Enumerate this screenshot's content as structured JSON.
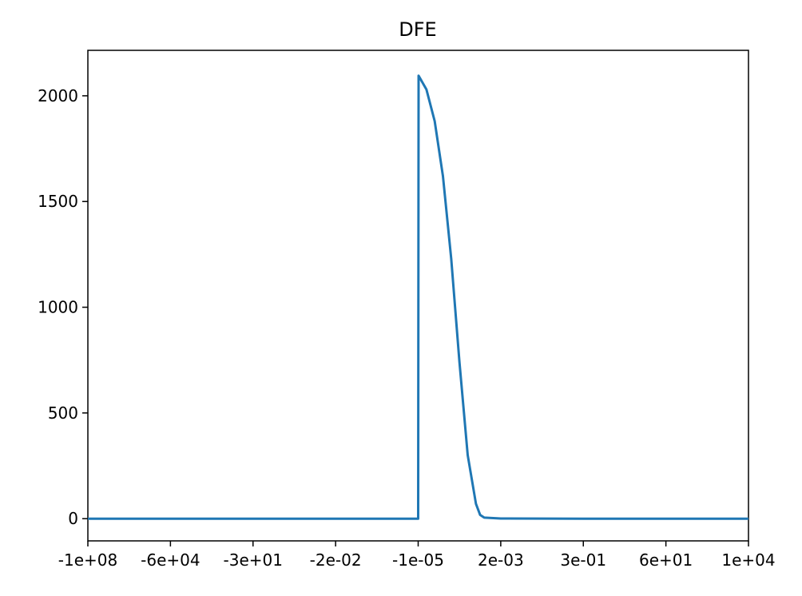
{
  "chart_data": {
    "type": "line",
    "title": "DFE",
    "xlabel": "",
    "ylabel": "",
    "x_tick_labels": [
      "-1e+08",
      "-6e+04",
      "-3e+01",
      "-2e-02",
      "-1e-05",
      "2e-03",
      "3e-01",
      "6e+01",
      "1e+04"
    ],
    "y_ticks": [
      0,
      500,
      1000,
      1500,
      2000
    ],
    "y_tick_labels": [
      "0",
      "500",
      "1000",
      "1500",
      "2000"
    ],
    "xlim_tick_index": [
      0,
      8
    ],
    "ylim": [
      -105,
      2215
    ],
    "grid": false,
    "legend": "none",
    "series": [
      {
        "color": "#1f77b4",
        "points": [
          [
            0,
            0
          ],
          [
            4,
            0
          ],
          [
            4.005,
            2095
          ],
          [
            4.1,
            2030
          ],
          [
            4.2,
            1880
          ],
          [
            4.3,
            1620
          ],
          [
            4.4,
            1230
          ],
          [
            4.5,
            740
          ],
          [
            4.6,
            300
          ],
          [
            4.7,
            70
          ],
          [
            4.75,
            18
          ],
          [
            4.8,
            5
          ],
          [
            5,
            1
          ],
          [
            6,
            0
          ],
          [
            8,
            0
          ]
        ]
      }
    ]
  }
}
